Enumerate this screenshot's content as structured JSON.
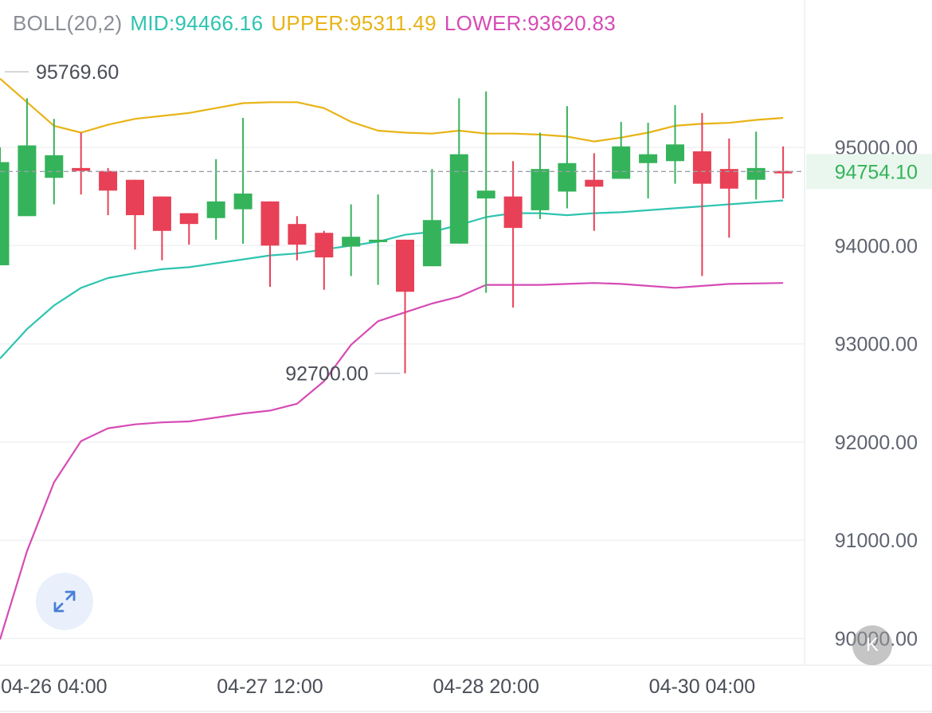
{
  "indicator": {
    "name": "BOLL(20,2)",
    "mid_label": "MID:94466.16",
    "upper_label": "UPPER:95311.49",
    "lower_label": "LOWER:93620.83",
    "mid_color": "#2ec4b0",
    "upper_color": "#e8b315",
    "lower_color": "#d64bb5"
  },
  "current_price": {
    "label": "94754.10",
    "value": 94754.1,
    "color": "#35b35a"
  },
  "high_marker": {
    "label": "95769.60",
    "value": 95769.6
  },
  "low_marker": {
    "label": "92700.00",
    "value": 92700.0
  },
  "controls": {
    "expand_icon": "expand-arrows-icon",
    "k_label": "K"
  },
  "chart_data": {
    "type": "candlestick",
    "title": "",
    "up_color": "#35b35a",
    "down_color": "#e84056",
    "ylim": [
      89750,
      96500
    ],
    "y_ticks": [
      {
        "value": 95000,
        "label": "95000.00"
      },
      {
        "value": 94000,
        "label": "94000.00"
      },
      {
        "value": 93000,
        "label": "93000.00"
      },
      {
        "value": 92000,
        "label": "92000.00"
      },
      {
        "value": 91000,
        "label": "91000.00"
      },
      {
        "value": 90000,
        "label": "90000.00"
      }
    ],
    "x_ticks": [
      {
        "index": 2,
        "label": "04-26 04:00"
      },
      {
        "index": 10,
        "label": "04-27 12:00"
      },
      {
        "index": 18,
        "label": "04-28 20:00"
      },
      {
        "index": 26,
        "label": "04-30 04:00"
      }
    ],
    "candles": [
      {
        "open": 93800,
        "high": 95000,
        "low": 93800,
        "close": 94850
      },
      {
        "open": 94300,
        "high": 95500,
        "low": 94300,
        "close": 95020
      },
      {
        "open": 94690,
        "high": 95290,
        "low": 94420,
        "close": 94920
      },
      {
        "open": 94790,
        "high": 95150,
        "low": 94520,
        "close": 94760
      },
      {
        "open": 94760,
        "high": 94790,
        "low": 94310,
        "close": 94560
      },
      {
        "open": 94670,
        "high": 94670,
        "low": 93960,
        "close": 94310
      },
      {
        "open": 94500,
        "high": 94500,
        "low": 93850,
        "close": 94150
      },
      {
        "open": 94330,
        "high": 94330,
        "low": 94010,
        "close": 94220
      },
      {
        "open": 94280,
        "high": 94880,
        "low": 94060,
        "close": 94450
      },
      {
        "open": 94370,
        "high": 95300,
        "low": 94020,
        "close": 94530
      },
      {
        "open": 94450,
        "high": 94450,
        "low": 93580,
        "close": 94000
      },
      {
        "open": 94220,
        "high": 94300,
        "low": 93850,
        "close": 94010
      },
      {
        "open": 94130,
        "high": 94150,
        "low": 93550,
        "close": 93880
      },
      {
        "open": 93990,
        "high": 94420,
        "low": 93690,
        "close": 94090
      },
      {
        "open": 94050,
        "high": 94520,
        "low": 93600,
        "close": 94060
      },
      {
        "open": 94060,
        "high": 94060,
        "low": 92700,
        "close": 93530
      },
      {
        "open": 93790,
        "high": 94780,
        "low": 93790,
        "close": 94260
      },
      {
        "open": 94020,
        "high": 95500,
        "low": 94020,
        "close": 94930
      },
      {
        "open": 94480,
        "high": 95570,
        "low": 93520,
        "close": 94560
      },
      {
        "open": 94500,
        "high": 94860,
        "low": 93370,
        "close": 94180
      },
      {
        "open": 94360,
        "high": 95150,
        "low": 94270,
        "close": 94780
      },
      {
        "open": 94550,
        "high": 95420,
        "low": 94380,
        "close": 94840
      },
      {
        "open": 94670,
        "high": 94940,
        "low": 94150,
        "close": 94600
      },
      {
        "open": 94680,
        "high": 95260,
        "low": 94690,
        "close": 95010
      },
      {
        "open": 94840,
        "high": 95250,
        "low": 94480,
        "close": 94930
      },
      {
        "open": 94860,
        "high": 95430,
        "low": 94630,
        "close": 95030
      },
      {
        "open": 94960,
        "high": 95350,
        "low": 93690,
        "close": 94630
      },
      {
        "open": 94780,
        "high": 95090,
        "low": 94080,
        "close": 94580
      },
      {
        "open": 94670,
        "high": 95160,
        "low": 94470,
        "close": 94790
      },
      {
        "open": 94760,
        "high": 95010,
        "low": 94480,
        "close": 94750
      }
    ],
    "series": [
      {
        "name": "UPPER",
        "values": [
          95700,
          95460,
          95220,
          95150,
          95230,
          95290,
          95320,
          95350,
          95400,
          95450,
          95460,
          95460,
          95400,
          95260,
          95170,
          95150,
          95140,
          95170,
          95140,
          95140,
          95130,
          95110,
          95060,
          95100,
          95150,
          95220,
          95240,
          95250,
          95280,
          95300
        ]
      },
      {
        "name": "MID",
        "values": [
          92850,
          93150,
          93390,
          93570,
          93670,
          93720,
          93760,
          93780,
          93820,
          93860,
          93900,
          93920,
          93960,
          94000,
          94040,
          94110,
          94140,
          94210,
          94290,
          94330,
          94330,
          94310,
          94330,
          94340,
          94360,
          94380,
          94400,
          94420,
          94440,
          94460
        ]
      },
      {
        "name": "LOWER",
        "values": [
          89990,
          90890,
          91590,
          92010,
          92140,
          92180,
          92200,
          92210,
          92250,
          92290,
          92320,
          92390,
          92620,
          92990,
          93230,
          93320,
          93410,
          93480,
          93600,
          93600,
          93600,
          93610,
          93620,
          93610,
          93590,
          93570,
          93590,
          93610,
          93615,
          93620
        ]
      }
    ]
  }
}
